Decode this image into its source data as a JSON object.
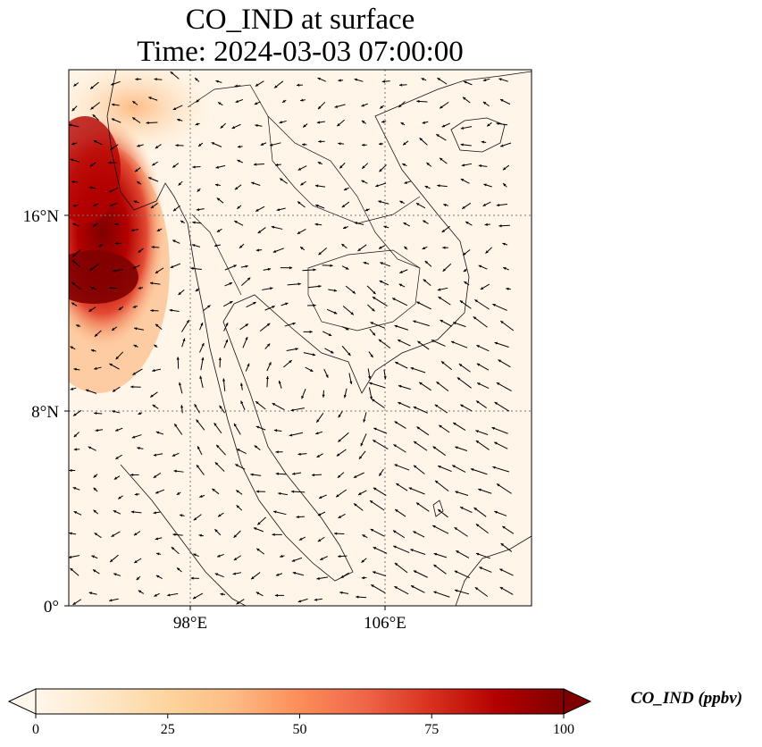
{
  "title": {
    "line1": "CO_IND at surface",
    "line2": "Time: 2024-03-03 07:00:00"
  },
  "map": {
    "lat_ticks": [
      "16°N",
      "8°N",
      "0°"
    ],
    "lon_ticks": [
      "98°E",
      "106°E"
    ],
    "gridlines": true,
    "projection": "PlateCarree",
    "overlays": [
      "coastlines",
      "country borders",
      "wind vectors"
    ]
  },
  "colorbar": {
    "label": "CO_IND (ppbv)",
    "colormap": "OrRd",
    "ticks": [
      "0",
      "25",
      "50",
      "75",
      "100"
    ],
    "min": 0,
    "max": 100,
    "extend": "both",
    "colors": [
      "#fff7ec",
      "#fee8c8",
      "#fdd49e",
      "#fdbb84",
      "#fc8d59",
      "#ef6548",
      "#d7301f",
      "#b30000",
      "#7f0000"
    ]
  }
}
